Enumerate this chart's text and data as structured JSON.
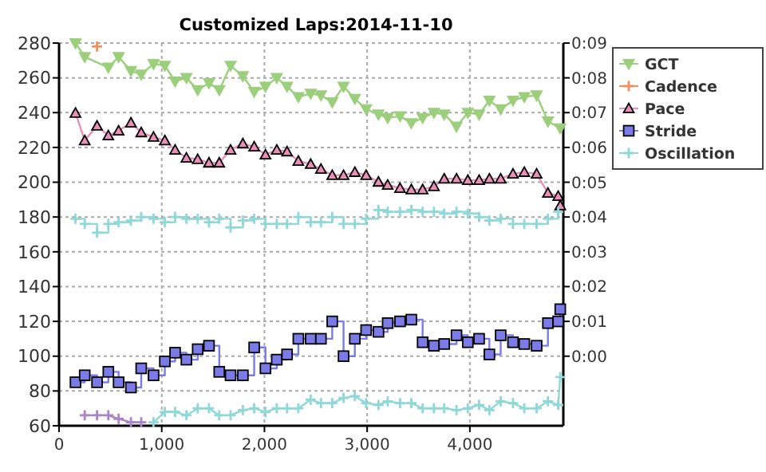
{
  "chart_data": {
    "type": "line",
    "title": "Customized Laps:2014-11-10",
    "x": [
      160,
      250,
      370,
      480,
      580,
      700,
      800,
      920,
      1030,
      1130,
      1240,
      1350,
      1460,
      1560,
      1670,
      1790,
      1900,
      2010,
      2120,
      2220,
      2330,
      2450,
      2550,
      2660,
      2770,
      2880,
      2990,
      3110,
      3200,
      3320,
      3430,
      3540,
      3650,
      3750,
      3870,
      3980,
      4090,
      4190,
      4300,
      4420,
      4530,
      4650,
      4760,
      4860,
      4880
    ],
    "xlim": [
      0,
      4910
    ],
    "xticks": [
      0,
      {
        "value": 1000,
        "label": "1,000"
      },
      {
        "value": 2000,
        "label": "2,000"
      },
      {
        "value": 3000,
        "label": "3,000"
      },
      {
        "value": 4000,
        "label": "4,000"
      }
    ],
    "ylim": [
      60,
      280
    ],
    "yticks": [
      60,
      80,
      100,
      120,
      140,
      160,
      180,
      200,
      220,
      240,
      260,
      280
    ],
    "y2lim": [
      -2,
      9
    ],
    "y2ticks": [
      {
        "value": 0,
        "label": "0:00"
      },
      {
        "value": 1,
        "label": "0:01"
      },
      {
        "value": 2,
        "label": "0:02"
      },
      {
        "value": 3,
        "label": "0:03"
      },
      {
        "value": 4,
        "label": "0:04"
      },
      {
        "value": 5,
        "label": "0:05"
      },
      {
        "value": 6,
        "label": "0:06"
      },
      {
        "value": 7,
        "label": "0:07"
      },
      {
        "value": 8,
        "label": "0:08"
      },
      {
        "value": 9,
        "label": "0:09"
      }
    ],
    "grid": true,
    "legend": "right",
    "series": [
      {
        "name": "GCT",
        "color": "#9ccf7c",
        "marker": "triangle-down",
        "values": [
          280,
          272,
          null,
          266,
          272,
          264,
          262,
          268,
          267,
          258,
          260,
          253,
          257,
          253,
          267,
          261,
          252,
          255,
          260,
          255,
          249,
          251,
          250,
          246,
          255,
          248,
          242,
          239,
          237,
          238,
          234,
          237,
          240,
          239,
          232,
          240,
          239,
          247,
          242,
          247,
          249,
          250,
          235,
          null,
          231
        ]
      },
      {
        "name": "Cadence",
        "color": "#f0905a",
        "marker": "plus",
        "values": [
          null,
          null,
          278,
          null,
          null,
          null,
          null,
          null,
          null,
          null,
          null,
          null,
          null,
          null,
          null,
          null,
          null,
          null,
          null,
          null,
          null,
          null,
          null,
          null,
          null,
          null,
          null,
          null,
          null,
          null,
          null,
          null,
          null,
          null,
          null,
          null,
          null,
          null,
          null,
          null,
          null,
          null,
          null,
          null,
          null
        ]
      },
      {
        "name": "Pace",
        "color": "#e890b8",
        "marker": "triangle",
        "axis": "y2",
        "values": [
          6.99,
          6.2,
          6.62,
          6.34,
          6.48,
          6.71,
          6.43,
          6.3,
          6.2,
          5.93,
          5.7,
          5.66,
          5.56,
          5.56,
          5.93,
          6.11,
          6.02,
          5.79,
          5.93,
          5.88,
          5.61,
          5.52,
          5.38,
          5.2,
          5.2,
          5.29,
          5.2,
          5.01,
          4.92,
          4.83,
          4.79,
          4.79,
          4.88,
          5.1,
          5.1,
          5.06,
          5.06,
          5.1,
          5.1,
          5.24,
          5.29,
          5.24,
          4.69,
          4.6,
          4.33
        ]
      },
      {
        "name": "Stride",
        "color": "#7b7be8",
        "marker": "square",
        "type": "step",
        "values": [
          85,
          89,
          85,
          91,
          85,
          82,
          93,
          89,
          97,
          102,
          98,
          104,
          106,
          91,
          89,
          89,
          105,
          93,
          98,
          101,
          110,
          110,
          110,
          120,
          100,
          110,
          115,
          114,
          119,
          120,
          121,
          108,
          106,
          107,
          112,
          108,
          110,
          101,
          112,
          108,
          107,
          106,
          119,
          120,
          127
        ]
      },
      {
        "name": "Oscillation",
        "color": "#8fd8d8",
        "marker": "plus",
        "type": "step",
        "values": [
          179,
          176,
          171,
          176,
          177,
          178,
          180,
          179,
          177,
          180,
          179,
          179,
          177,
          179,
          174,
          178,
          179,
          176,
          176,
          176,
          180,
          177,
          177,
          180,
          176,
          176,
          179,
          184,
          183,
          183,
          184,
          183,
          183,
          182,
          183,
          182,
          180,
          178,
          179,
          176,
          176,
          176,
          179,
          183,
          null
        ]
      },
      {
        "color": "#a984c8",
        "marker": "plus",
        "values": [
          null,
          66,
          66,
          66,
          64,
          62,
          62,
          null,
          null,
          null,
          null,
          null,
          null,
          null,
          null,
          null,
          null,
          null,
          null,
          null,
          null,
          null,
          null,
          null,
          null,
          null,
          null,
          null,
          null,
          null,
          null,
          null,
          null,
          null,
          null,
          null,
          null,
          null,
          null,
          null,
          null,
          null,
          null,
          null,
          null
        ]
      },
      {
        "color": "#8fd8d8",
        "marker": "plus",
        "values": [
          null,
          null,
          null,
          null,
          null,
          null,
          null,
          62,
          68,
          68,
          66,
          70,
          70,
          66,
          66,
          69,
          70,
          68,
          70,
          70,
          70,
          75,
          73,
          73,
          76,
          77,
          73,
          72,
          74,
          73,
          73,
          70,
          70,
          70,
          69,
          70,
          72,
          69,
          74,
          73,
          70,
          70,
          74,
          72,
          88
        ]
      }
    ]
  }
}
